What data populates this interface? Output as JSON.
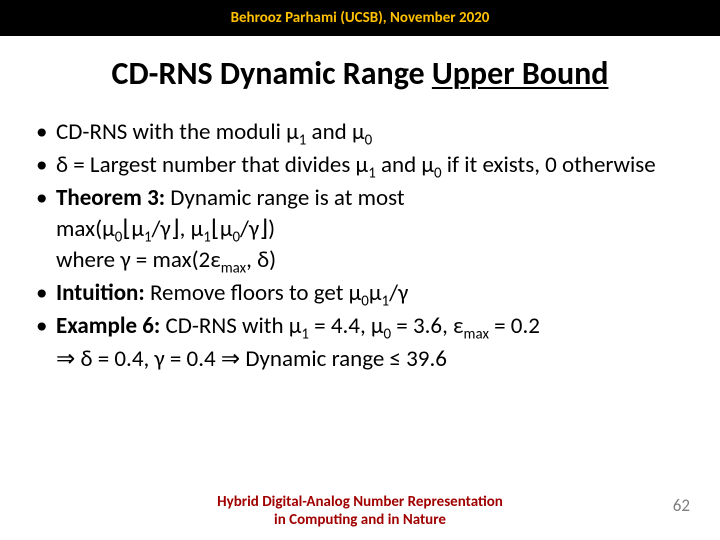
{
  "header": "Behrooz Parhami (UCSB), November 2020",
  "title_plain": "CD-RNS Dynamic Range ",
  "title_underlined": "Upper Bound",
  "b1_a": "CD-RNS with the moduli μ",
  "b1_b": " and μ",
  "b2_a": "δ = Largest number that divides μ",
  "b2_b": " and μ",
  "b2_c": " if it exists, 0 otherwise",
  "b3_label": "Theorem 3:",
  "b3_a": " Dynamic range is at most",
  "b3_line2_a": "max(μ",
  "b3_line2_b": "⌊μ",
  "b3_line2_c": "/γ⌋, μ",
  "b3_line2_d": "⌊μ",
  "b3_line2_e": "/γ⌋)",
  "b3_line3_a": "where γ = max(2ε",
  "b3_line3_b": ", δ)",
  "b4_label": "Intuition:",
  "b4_a": " Remove floors to get μ",
  "b4_b": "μ",
  "b4_c": "/γ",
  "b5_label": "Example 6:",
  "b5_a": " CD-RNS with μ",
  "b5_b": " = 4.4, μ",
  "b5_c": " = 3.6, ε",
  "b5_d": " = 0.2",
  "b5_line2": "⇒ δ = 0.4, γ = 0.4  ⇒  Dynamic range ≤ 39.6",
  "sub0": "0",
  "sub1": "1",
  "submax": "max",
  "footer_l1": "Hybrid Digital-Analog Number Representation",
  "footer_l2": "in Computing and in Nature",
  "page": "62"
}
